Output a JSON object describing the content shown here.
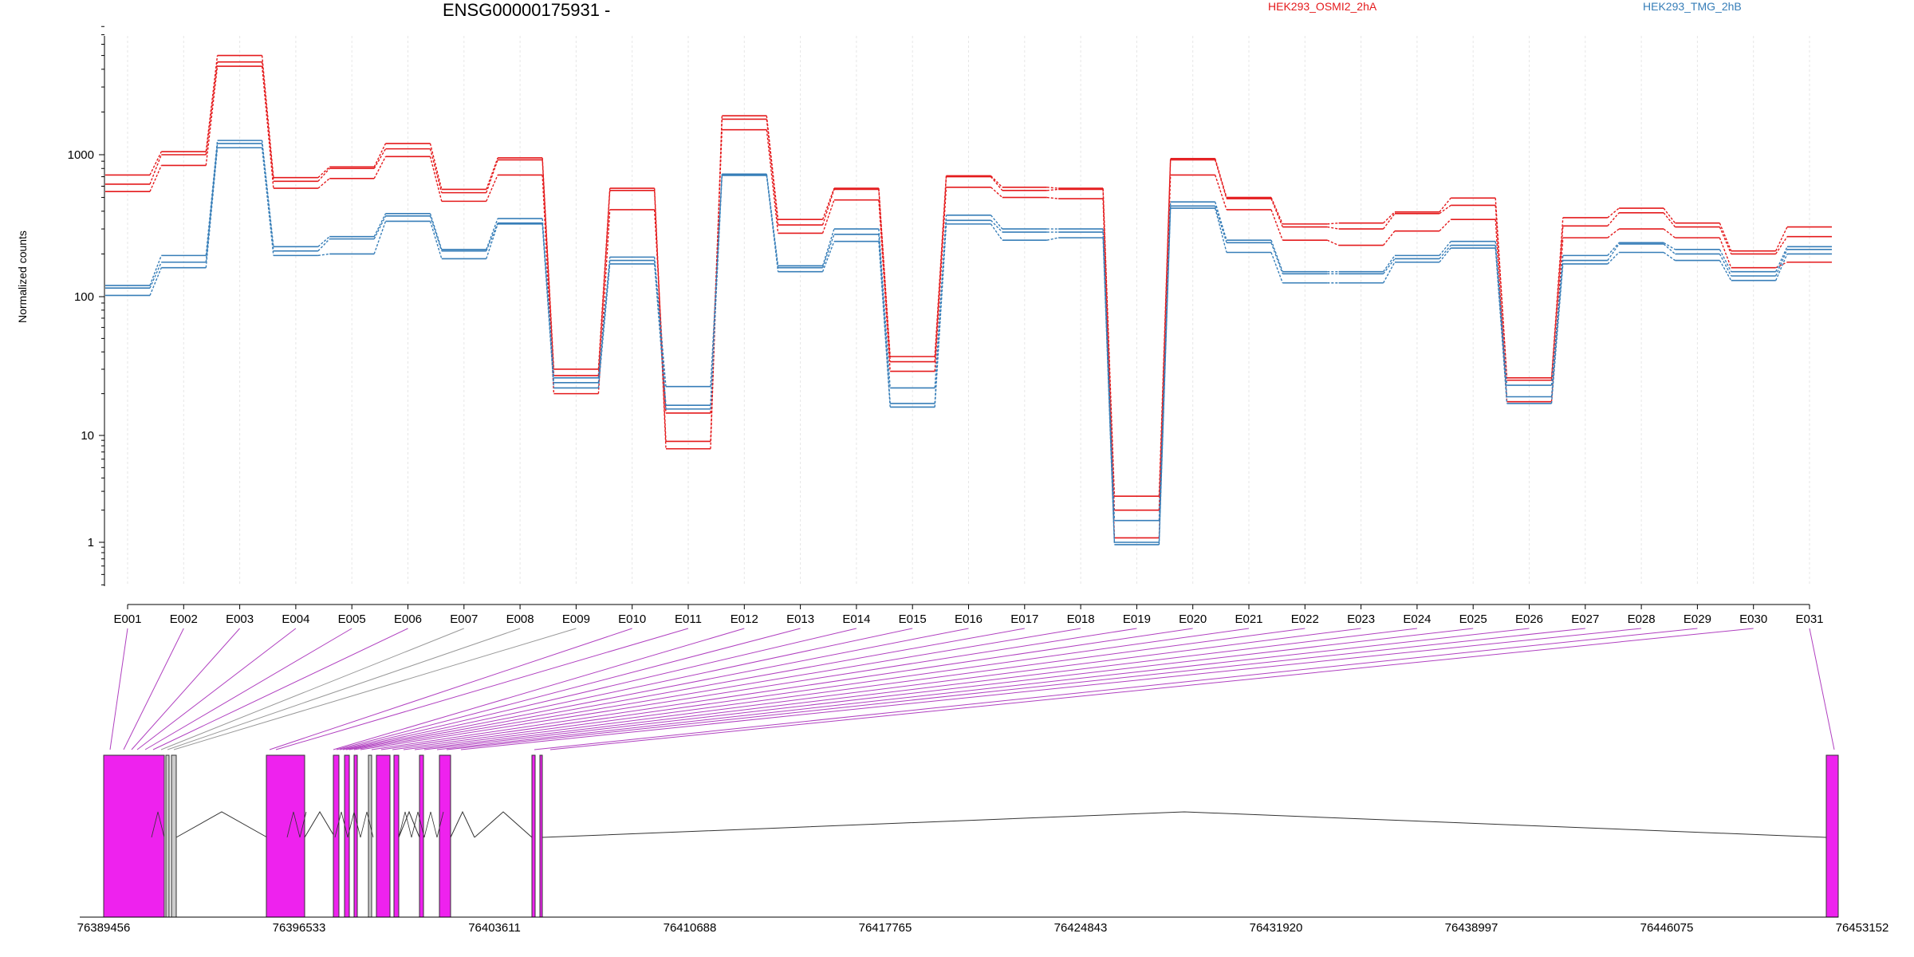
{
  "title": "ENSG00000175931 -",
  "ylabel": "Normalized counts",
  "colors": {
    "groupA": "#e41a1c",
    "groupB": "#377eb8",
    "exon": "#ee22ee",
    "exonGray": "#cccccc",
    "link": "#b040c0",
    "linkGray": "#999999"
  },
  "legend": [
    {
      "name": "HEK293_OSMI2_2hA",
      "color": "#e41a1c"
    },
    {
      "name": "HEK293_TMG_2hB",
      "color": "#377eb8"
    }
  ],
  "chart_data": {
    "type": "line",
    "yscale": "log",
    "ylim": [
      0.4,
      8000
    ],
    "yticks": [
      1,
      10,
      100,
      1000
    ],
    "ytick_labels": [
      "1",
      "10",
      "100",
      "1000"
    ],
    "categories": [
      "E001",
      "E002",
      "E003",
      "E004",
      "E005",
      "E006",
      "E007",
      "E008",
      "E009",
      "E010",
      "E011",
      "E012",
      "E013",
      "E014",
      "E015",
      "E016",
      "E017",
      "E018",
      "E019",
      "E020",
      "E021",
      "E022",
      "E023",
      "E024",
      "E025",
      "E026",
      "E027",
      "E028",
      "E029",
      "E030",
      "E031"
    ],
    "gray_exons": [
      "E007",
      "E008",
      "E009"
    ],
    "series": [
      {
        "group": "A",
        "values": [
          720,
          1050,
          5000,
          690,
          820,
          1200,
          570,
          950,
          30,
          580,
          8.8,
          1880,
          350,
          580,
          37,
          710,
          590,
          580,
          2.7,
          940,
          500,
          325,
          330,
          395,
          495,
          26,
          360,
          420,
          330,
          210,
          310
        ]
      },
      {
        "group": "A",
        "values": [
          620,
          1000,
          4500,
          650,
          800,
          1100,
          540,
          920,
          27,
          560,
          7.5,
          1780,
          320,
          570,
          34,
          700,
          560,
          570,
          2.0,
          920,
          490,
          310,
          300,
          385,
          440,
          25,
          315,
          390,
          310,
          200,
          265
        ]
      },
      {
        "group": "A",
        "values": [
          550,
          840,
          4200,
          580,
          680,
          970,
          470,
          720,
          20,
          410,
          14.5,
          1500,
          280,
          480,
          29,
          590,
          500,
          490,
          1.1,
          720,
          410,
          250,
          230,
          290,
          350,
          17.5,
          260,
          300,
          260,
          160,
          175
        ]
      },
      {
        "group": "B",
        "values": [
          120,
          195,
          1260,
          225,
          265,
          385,
          215,
          355,
          26,
          190,
          22.5,
          730,
          165,
          300,
          22,
          375,
          300,
          300,
          1.6,
          465,
          250,
          150,
          150,
          195,
          245,
          23,
          195,
          240,
          215,
          150,
          225
        ]
      },
      {
        "group": "B",
        "values": [
          115,
          175,
          1200,
          210,
          255,
          370,
          210,
          330,
          24,
          180,
          16.5,
          720,
          160,
          275,
          17,
          345,
          285,
          285,
          1.0,
          435,
          240,
          145,
          145,
          185,
          230,
          19,
          180,
          235,
          200,
          140,
          215
        ]
      },
      {
        "group": "B",
        "values": [
          102,
          160,
          1120,
          195,
          200,
          340,
          185,
          325,
          22,
          170,
          15.5,
          715,
          150,
          245,
          16,
          325,
          250,
          260,
          0.95,
          420,
          205,
          125,
          125,
          175,
          220,
          17,
          170,
          205,
          180,
          130,
          200
        ]
      }
    ]
  },
  "gene_model": {
    "axis_labels": [
      "76389456",
      "76396533",
      "76403611",
      "76410688",
      "76417765",
      "76424843",
      "76431920",
      "76438997",
      "76446075",
      "76453152"
    ]
  }
}
